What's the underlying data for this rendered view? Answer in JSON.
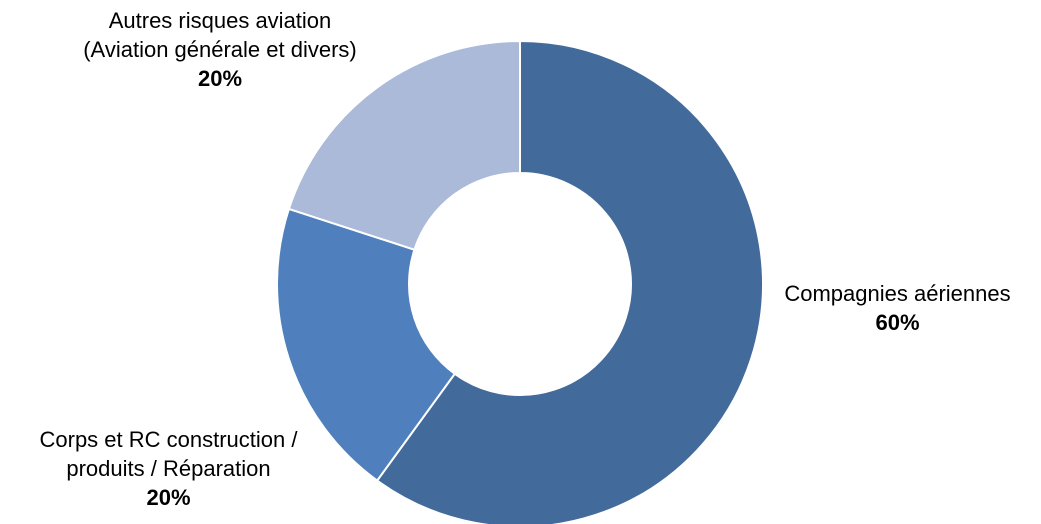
{
  "chart_data": {
    "type": "pie",
    "donut": true,
    "slices": [
      {
        "label_lines": [
          "Compagnies aériennes"
        ],
        "value": 60,
        "percent_label": "60%",
        "color": "#426b9c"
      },
      {
        "label_lines": [
          "Corps et RC construction /",
          "produits / Réparation"
        ],
        "value": 20,
        "percent_label": "20%",
        "color": "#4f80bd"
      },
      {
        "label_lines": [
          "Autres risques aviation",
          "(Aviation générale et divers)"
        ],
        "value": 20,
        "percent_label": "20%",
        "color": "#abbad9"
      }
    ],
    "start_angle_deg": 0,
    "direction": "clockwise",
    "legend": "none"
  }
}
